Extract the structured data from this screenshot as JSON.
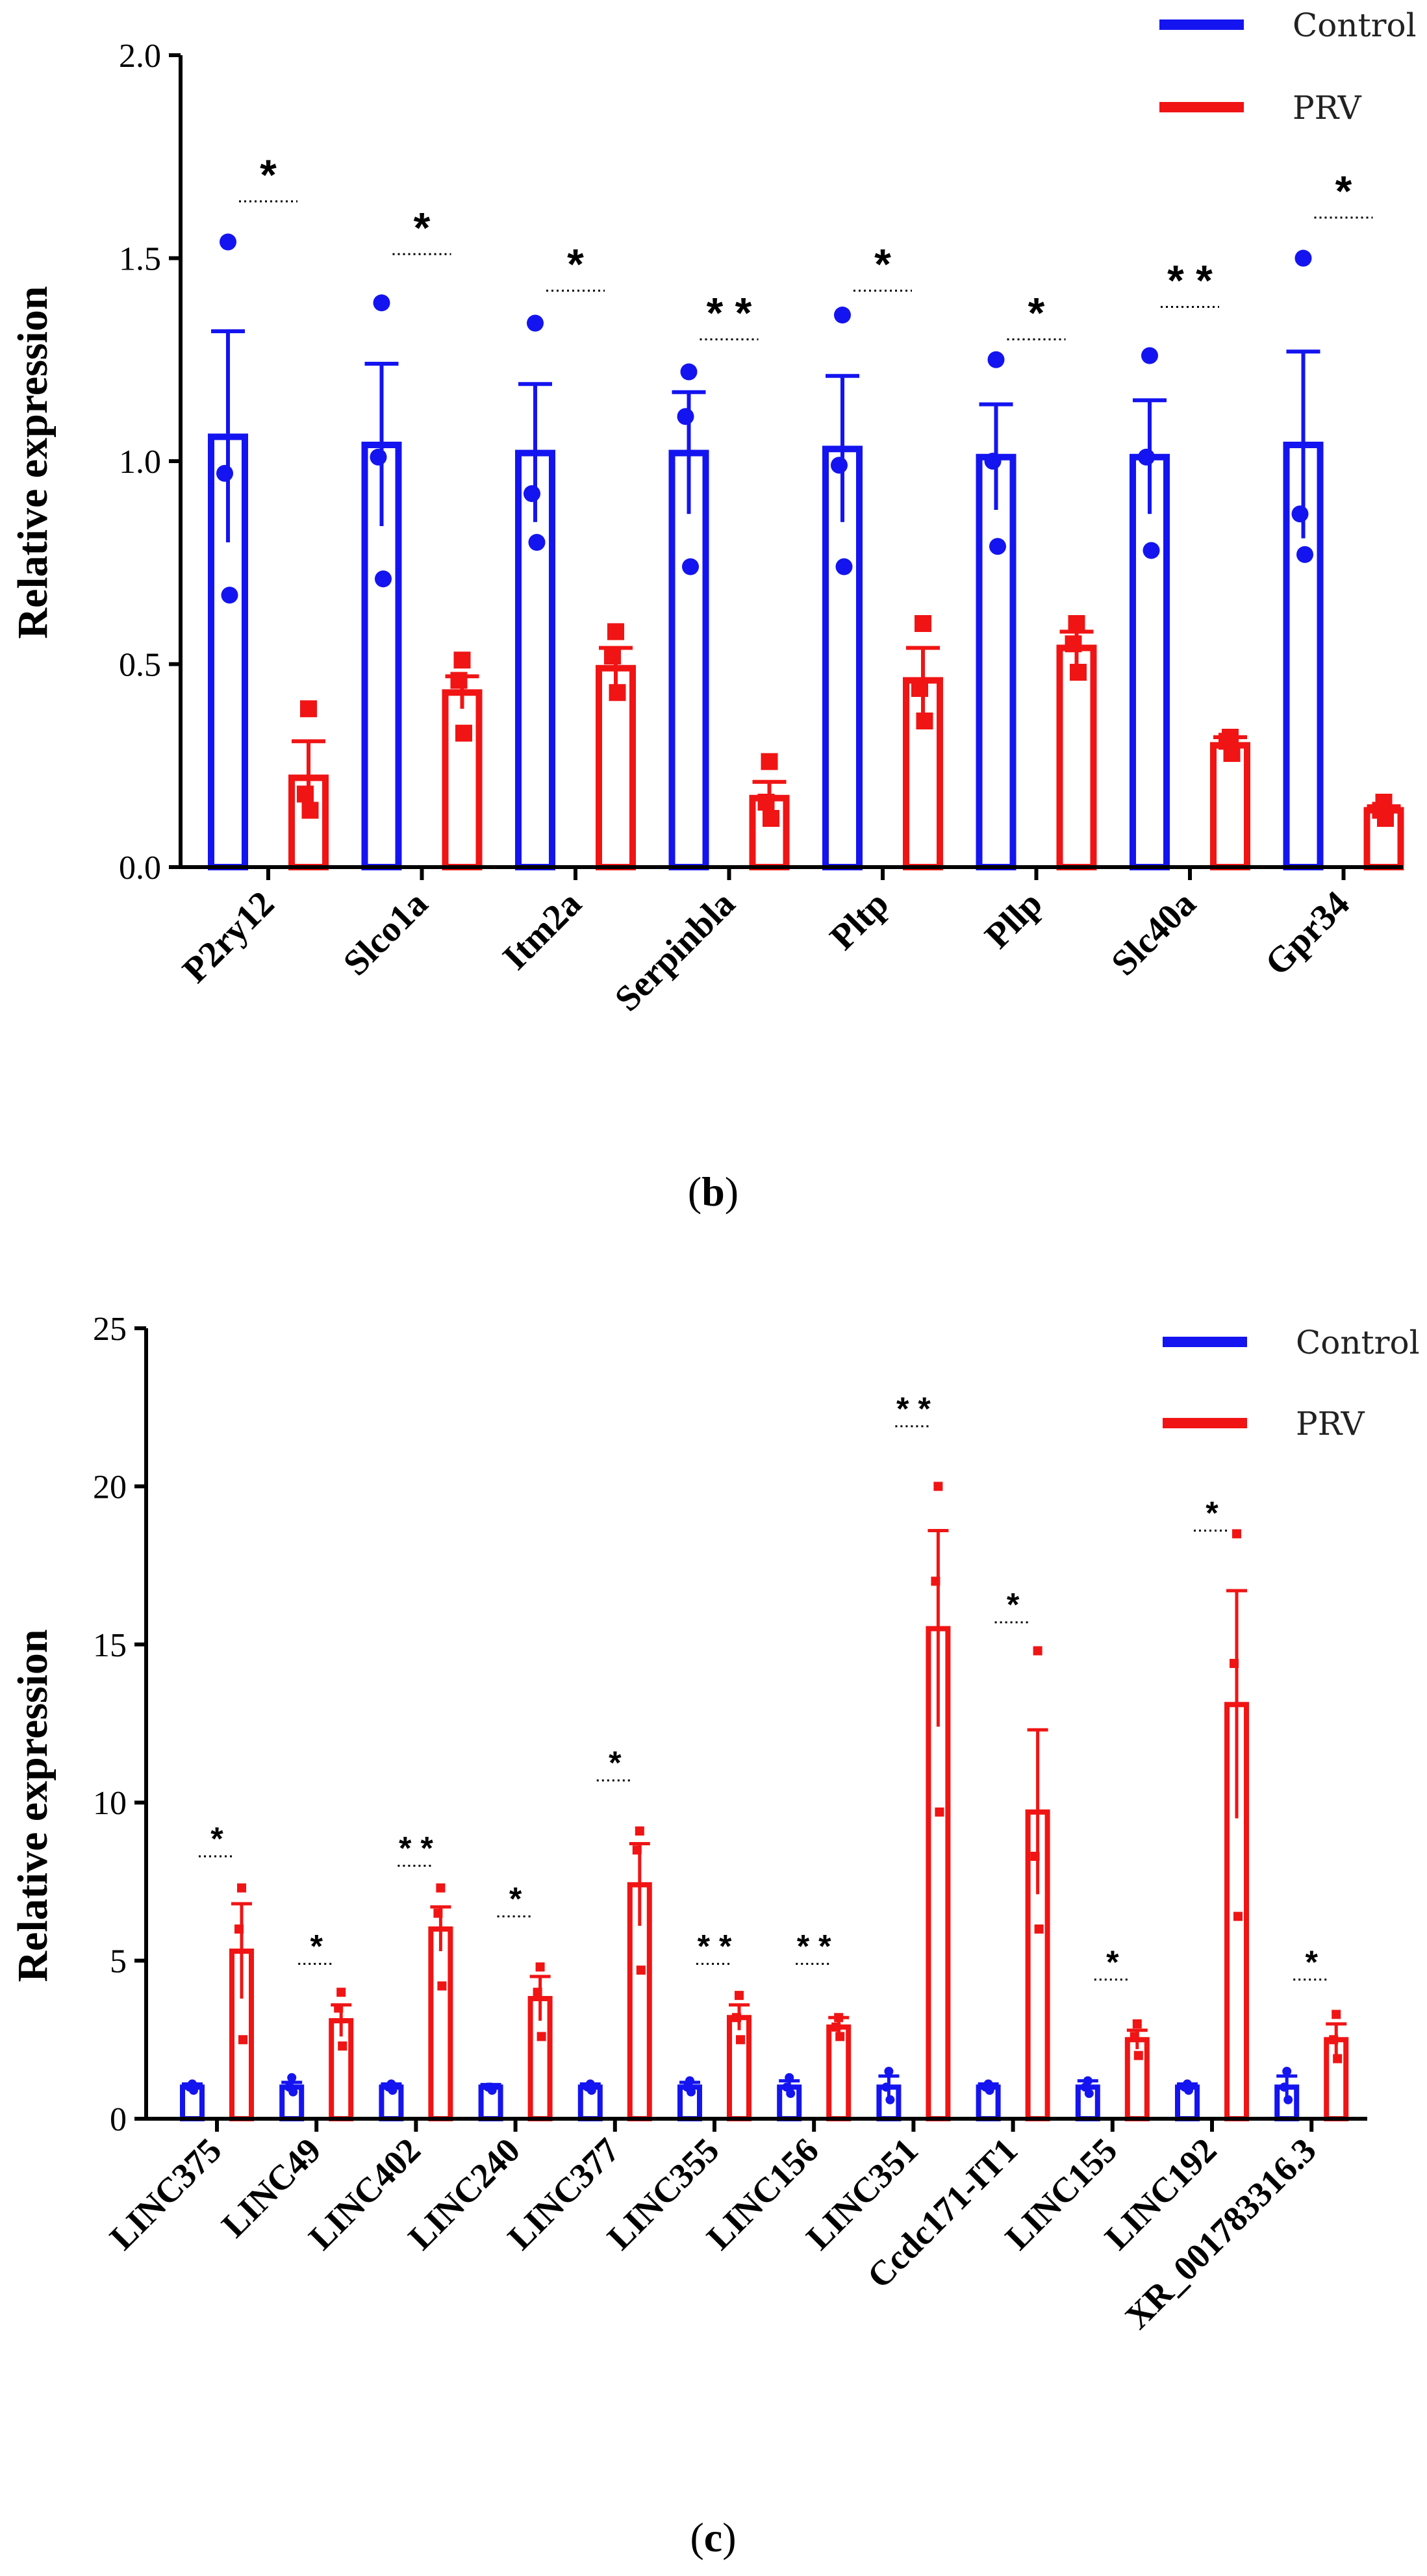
{
  "chart_data": [
    {
      "type": "bar",
      "panel": "b",
      "ylabel": "Relative expression",
      "ylim": [
        0,
        2.0
      ],
      "yticks": [
        "0.0",
        "0.5",
        "1.0",
        "1.5",
        "2.0"
      ],
      "categories": [
        "P2ry12",
        "Slco1a",
        "Itm2a",
        "Serpinbla",
        "Pltp",
        "Pllp",
        "Slc40a",
        "Gpr34"
      ],
      "series": [
        {
          "name": "Control",
          "color": "#1414F0",
          "values": [
            1.06,
            1.04,
            1.02,
            1.02,
            1.03,
            1.01,
            1.01,
            1.04
          ],
          "errors": [
            0.26,
            0.2,
            0.17,
            0.15,
            0.18,
            0.13,
            0.14,
            0.23
          ],
          "points": [
            [
              1.54,
              0.97,
              0.67
            ],
            [
              1.39,
              1.01,
              0.71
            ],
            [
              1.34,
              0.92,
              0.8
            ],
            [
              1.22,
              1.11,
              0.74
            ],
            [
              1.36,
              0.99,
              0.74
            ],
            [
              1.25,
              1.0,
              0.79
            ],
            [
              1.26,
              1.01,
              0.78
            ],
            [
              1.5,
              0.87,
              0.77
            ]
          ]
        },
        {
          "name": "PRV",
          "color": "#F01414",
          "values": [
            0.22,
            0.43,
            0.49,
            0.17,
            0.46,
            0.54,
            0.3,
            0.14
          ],
          "errors": [
            0.09,
            0.04,
            0.05,
            0.04,
            0.08,
            0.04,
            0.02,
            0.01
          ],
          "points": [
            [
              0.39,
              0.18,
              0.14
            ],
            [
              0.51,
              0.46,
              0.33
            ],
            [
              0.58,
              0.52,
              0.43
            ],
            [
              0.26,
              0.16,
              0.12
            ],
            [
              0.6,
              0.44,
              0.36
            ],
            [
              0.6,
              0.55,
              0.48
            ],
            [
              0.32,
              0.31,
              0.28
            ],
            [
              0.16,
              0.14,
              0.12
            ]
          ]
        }
      ],
      "significance": [
        "*",
        "*",
        "*",
        "* *",
        "*",
        "*",
        "* *",
        "*"
      ],
      "sig_values": [
        1.64,
        1.51,
        1.42,
        1.3,
        1.42,
        1.3,
        1.38,
        1.6
      ],
      "legend": [
        "Control",
        "PRV"
      ],
      "legend_position": "top-right",
      "caption": "b"
    },
    {
      "type": "bar",
      "panel": "c",
      "ylabel": "Relative expression",
      "ylim": [
        0,
        25
      ],
      "yticks": [
        "0",
        "5",
        "10",
        "15",
        "20",
        "25"
      ],
      "categories": [
        "LINC375",
        "LINC49",
        "LINC402",
        "LINC240",
        "LINC377",
        "LINC355",
        "LINC156",
        "LINC351",
        "Ccdc171-IT1",
        "LINC155",
        "LINC192",
        "XR_001783316.3"
      ],
      "series": [
        {
          "name": "Control",
          "color": "#1414F0",
          "values": [
            1.0,
            1.0,
            1.0,
            1.0,
            1.0,
            1.0,
            1.0,
            1.0,
            1.0,
            1.0,
            1.0,
            1.0
          ],
          "errors": [
            0.1,
            0.15,
            0.1,
            0.08,
            0.1,
            0.15,
            0.2,
            0.35,
            0.1,
            0.2,
            0.1,
            0.35
          ],
          "points": [
            [
              1.1,
              1.0,
              0.9
            ],
            [
              1.3,
              1.0,
              0.85
            ],
            [
              1.1,
              1.0,
              0.9
            ],
            [
              1.0,
              1.0,
              0.9
            ],
            [
              1.1,
              1.0,
              0.9
            ],
            [
              1.2,
              1.0,
              0.85
            ],
            [
              1.3,
              1.0,
              0.8
            ],
            [
              1.5,
              1.0,
              0.6
            ],
            [
              1.1,
              1.0,
              0.9
            ],
            [
              1.2,
              1.0,
              0.8
            ],
            [
              1.1,
              1.0,
              0.9
            ],
            [
              1.5,
              1.0,
              0.6
            ]
          ]
        },
        {
          "name": "PRV",
          "color": "#F01414",
          "values": [
            5.3,
            3.1,
            6.0,
            3.8,
            7.4,
            3.2,
            2.9,
            15.5,
            9.7,
            2.5,
            13.1,
            2.5
          ],
          "errors": [
            1.5,
            0.5,
            0.7,
            0.7,
            1.3,
            0.4,
            0.3,
            3.1,
            2.6,
            0.3,
            3.6,
            0.5
          ],
          "points": [
            [
              7.3,
              6.0,
              2.5
            ],
            [
              4.0,
              3.5,
              2.3
            ],
            [
              7.3,
              6.5,
              4.2
            ],
            [
              4.8,
              4.0,
              2.6
            ],
            [
              9.1,
              8.5,
              4.7
            ],
            [
              3.9,
              3.2,
              2.5
            ],
            [
              3.2,
              2.9,
              2.6
            ],
            [
              20.0,
              17.0,
              9.7
            ],
            [
              14.8,
              8.3,
              6.0
            ],
            [
              3.0,
              2.6,
              2.0
            ],
            [
              18.5,
              14.4,
              6.4
            ],
            [
              3.3,
              2.5,
              1.9
            ]
          ]
        }
      ],
      "significance": [
        "*",
        "*",
        "* *",
        "*",
        "*",
        "* *",
        "* *",
        "* *",
        "*",
        "*",
        "*",
        "*"
      ],
      "sig_values": [
        8.3,
        4.9,
        8.0,
        6.4,
        10.7,
        4.9,
        4.9,
        21.9,
        15.7,
        4.4,
        18.6,
        4.4
      ],
      "legend": [
        "Control",
        "PRV"
      ],
      "legend_position": "top-right",
      "caption": "c"
    }
  ]
}
